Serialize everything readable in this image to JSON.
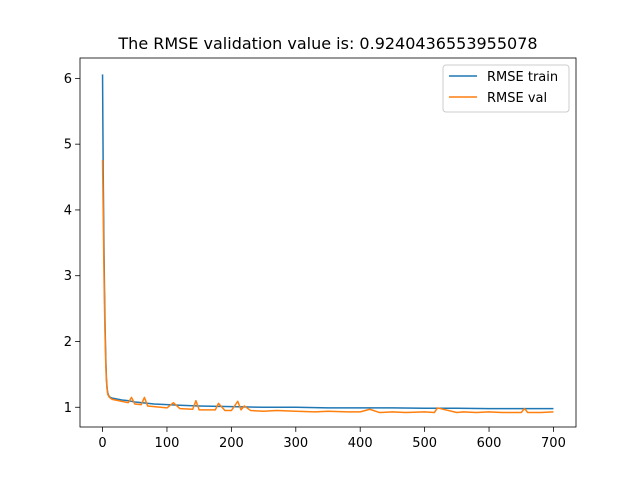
{
  "chart_data": {
    "type": "line",
    "title": "The RMSE validation value is: 0.9240436553955078",
    "xlabel": "",
    "ylabel": "",
    "xlim": [
      -35,
      735
    ],
    "ylim": [
      0.7,
      6.31
    ],
    "x_ticks": [
      0,
      100,
      200,
      300,
      400,
      500,
      600,
      700
    ],
    "y_ticks": [
      1,
      2,
      3,
      4,
      5,
      6
    ],
    "grid": false,
    "legend": "top-right",
    "series": [
      {
        "name": "RMSE train",
        "color": "#1f77b4",
        "x": [
          0,
          1,
          2,
          3,
          4,
          5,
          6,
          7,
          8,
          10,
          12,
          15,
          20,
          30,
          40,
          50,
          60,
          80,
          100,
          120,
          150,
          200,
          250,
          300,
          350,
          400,
          450,
          500,
          550,
          600,
          650,
          700
        ],
        "y": [
          6.06,
          4.6,
          3.6,
          2.8,
          2.2,
          1.75,
          1.45,
          1.3,
          1.22,
          1.17,
          1.15,
          1.14,
          1.13,
          1.11,
          1.1,
          1.08,
          1.07,
          1.05,
          1.04,
          1.03,
          1.02,
          1.01,
          1.0,
          1.0,
          0.99,
          0.99,
          0.99,
          0.985,
          0.985,
          0.98,
          0.98,
          0.98
        ]
      },
      {
        "name": "RMSE val",
        "color": "#ff7f0e",
        "x": [
          0,
          1,
          2,
          3,
          4,
          5,
          6,
          7,
          8,
          10,
          12,
          15,
          20,
          30,
          40,
          45,
          50,
          60,
          65,
          70,
          80,
          100,
          110,
          120,
          140,
          145,
          150,
          175,
          180,
          190,
          200,
          210,
          215,
          220,
          230,
          250,
          270,
          300,
          330,
          350,
          380,
          400,
          415,
          430,
          450,
          470,
          500,
          515,
          520,
          550,
          560,
          580,
          600,
          620,
          650,
          655,
          660,
          680,
          700
        ],
        "y": [
          4.76,
          4.0,
          3.2,
          2.55,
          2.05,
          1.65,
          1.4,
          1.28,
          1.2,
          1.16,
          1.14,
          1.12,
          1.11,
          1.09,
          1.07,
          1.15,
          1.05,
          1.04,
          1.15,
          1.02,
          1.01,
          0.99,
          1.07,
          0.98,
          0.97,
          1.1,
          0.96,
          0.96,
          1.06,
          0.95,
          0.95,
          1.09,
          0.96,
          1.02,
          0.95,
          0.94,
          0.95,
          0.94,
          0.93,
          0.94,
          0.93,
          0.93,
          0.97,
          0.92,
          0.93,
          0.92,
          0.93,
          0.92,
          0.99,
          0.92,
          0.93,
          0.92,
          0.93,
          0.92,
          0.92,
          0.98,
          0.92,
          0.92,
          0.93
        ]
      }
    ]
  }
}
